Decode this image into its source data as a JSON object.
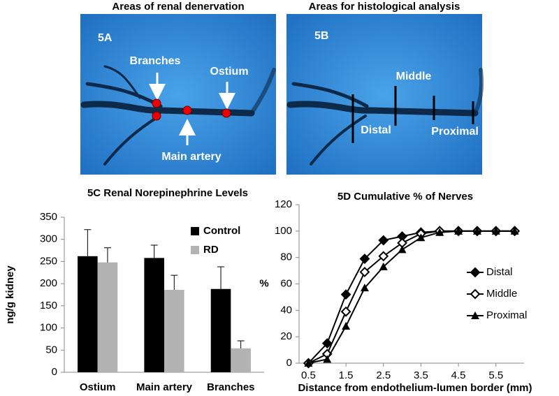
{
  "panels": [
    {
      "title": "Areas of renal denervation",
      "label": "5A",
      "annotations": [
        "Branches",
        "Ostium",
        "Main artery"
      ]
    },
    {
      "title": "Areas for histological analysis",
      "label": "5B",
      "annotations": [
        "Middle",
        "Distal",
        "Proximal"
      ]
    }
  ],
  "chart_data": [
    {
      "type": "bar",
      "title": "5C  Renal Norepinephrine Levels",
      "y_label": "ng/g kidney",
      "categories": [
        "Ostium",
        "Main artery",
        "Branches"
      ],
      "series": [
        {
          "name": "Control",
          "color": "#000000",
          "values": [
            262,
            258,
            188
          ],
          "errors": [
            60,
            29,
            50
          ]
        },
        {
          "name": "RD",
          "color": "#b3b3b3",
          "values": [
            248,
            186,
            54
          ],
          "errors": [
            33,
            33,
            17
          ]
        }
      ],
      "ylim": [
        0,
        350
      ],
      "yticks": [
        0,
        50,
        100,
        150,
        200,
        250,
        300,
        350
      ],
      "grid": false,
      "legend": "upper right"
    },
    {
      "type": "line",
      "title": "5D  Cumulative % of Nerves",
      "x_label": "Distance from endothelium-lumen border (mm)",
      "y_label": "%",
      "x": [
        0.5,
        1,
        1.5,
        2,
        2.5,
        3,
        3.5,
        4,
        4.5,
        5,
        5.5,
        6
      ],
      "series": [
        {
          "name": "Distal",
          "color": "#000000",
          "marker": "diamond",
          "values": [
            0,
            15,
            52,
            79,
            93,
            96,
            99,
            100,
            100,
            100,
            100,
            100
          ]
        },
        {
          "name": "Middle",
          "color": "#000000",
          "marker": "open-diamond",
          "values": [
            0,
            7,
            39,
            69,
            81,
            91,
            98,
            100,
            100,
            100,
            100,
            100
          ]
        },
        {
          "name": "Proximal",
          "color": "#000000",
          "marker": "triangle",
          "values": [
            0,
            3,
            28,
            57,
            73,
            86,
            95,
            99,
            100,
            100,
            100,
            100
          ]
        }
      ],
      "xlim": [
        0.25,
        6.25
      ],
      "xticks": [
        0.5,
        1.5,
        2.5,
        3.5,
        4.5,
        5.5
      ],
      "ylim": [
        0,
        120
      ],
      "yticks": [
        0,
        20,
        40,
        60,
        80,
        100,
        120
      ],
      "grid": false,
      "legend": "right"
    }
  ]
}
